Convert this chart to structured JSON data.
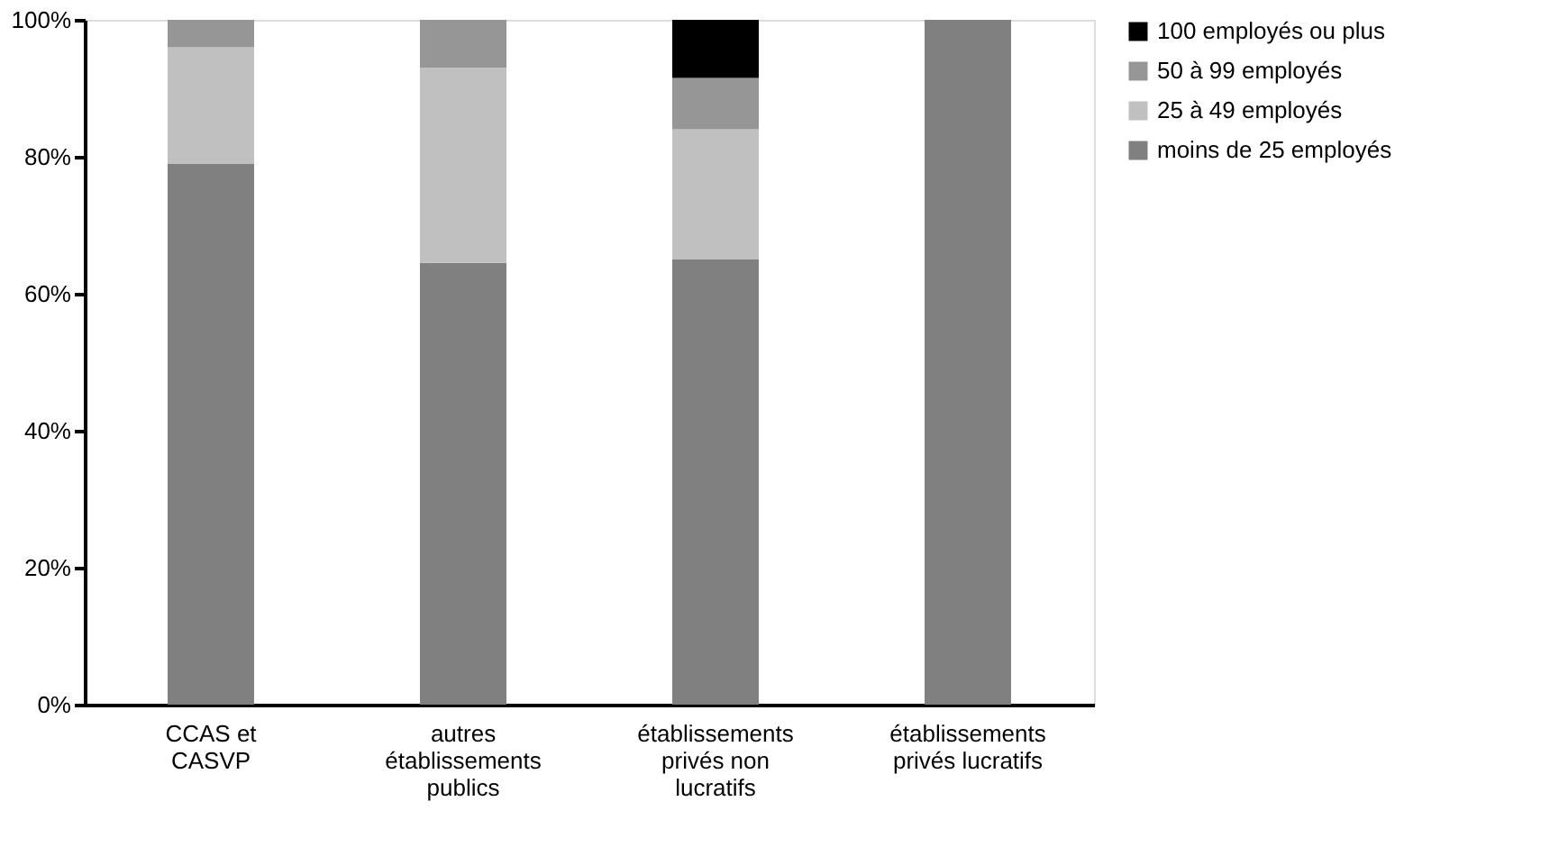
{
  "chart_data": {
    "type": "bar",
    "stacked": true,
    "categories": [
      "CCAS et\nCASVP",
      "autres\nétablissements\npublics",
      "établissements\nprivés non\nlucratifs",
      "établissements\nprivés lucratifs"
    ],
    "series": [
      {
        "name": "moins de 25 employés",
        "color": "#808080",
        "values": [
          79,
          64.5,
          65,
          100
        ]
      },
      {
        "name": "25 à 49 employés",
        "color": "#c0c0c0",
        "values": [
          17,
          28.5,
          19,
          0
        ]
      },
      {
        "name": "50 à 99 employés",
        "color": "#969696",
        "values": [
          4,
          7,
          7.5,
          0
        ]
      },
      {
        "name": "100 employés ou plus",
        "color": "#000000",
        "values": [
          0,
          0,
          8.5,
          0
        ]
      }
    ],
    "ylim": [
      0,
      100
    ],
    "yticks": [
      {
        "value": 0,
        "label": "0%"
      },
      {
        "value": 20,
        "label": "20%"
      },
      {
        "value": 40,
        "label": "40%"
      },
      {
        "value": 60,
        "label": "60%"
      },
      {
        "value": 80,
        "label": "80%"
      },
      {
        "value": 100,
        "label": "100%"
      }
    ],
    "grid": false,
    "legend": "right"
  }
}
